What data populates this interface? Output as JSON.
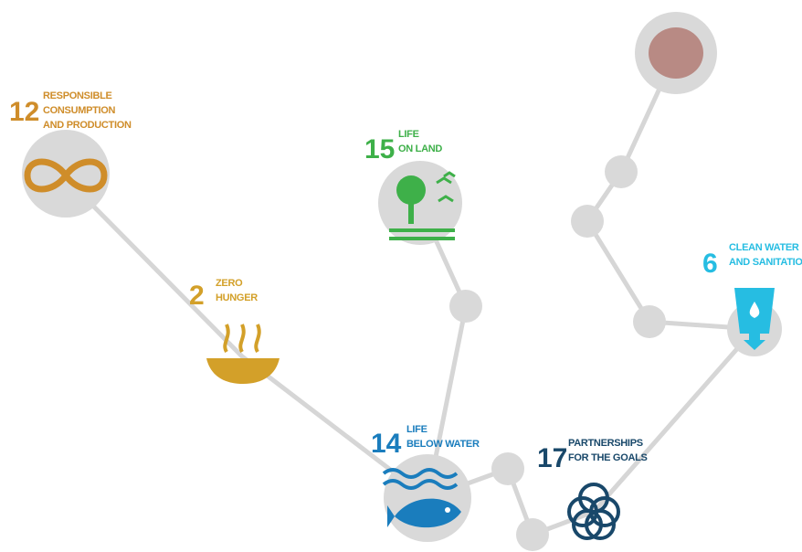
{
  "nodes": [
    {
      "number": "12",
      "lines": [
        "RESPONSIBLE",
        "CONSUMPTION",
        "AND PRODUCTION"
      ]
    },
    {
      "number": "2",
      "lines": [
        "ZERO",
        "HUNGER"
      ]
    },
    {
      "number": "15",
      "lines": [
        "LIFE",
        "ON LAND"
      ]
    },
    {
      "number": "14",
      "lines": [
        "LIFE",
        "BELOW WATER"
      ]
    },
    {
      "number": "17",
      "lines": [
        "PARTNERSHIPS",
        "FOR THE GOALS"
      ]
    },
    {
      "number": "6",
      "lines": [
        "CLEAN WATER",
        "AND SANITATION"
      ]
    }
  ]
}
